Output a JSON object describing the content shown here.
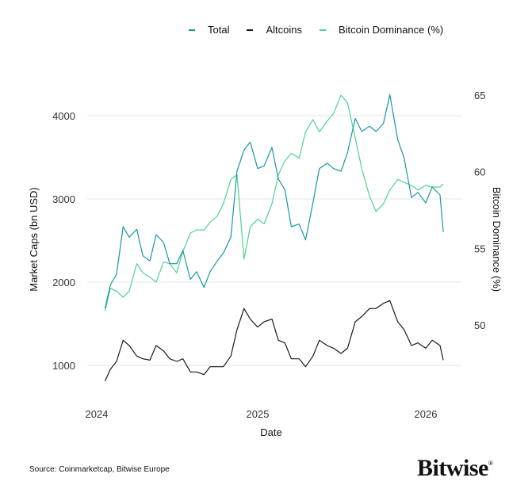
{
  "chart_data": {
    "type": "line",
    "xlabel": "Date",
    "ylabel_left": "Market Caps (bn USD)",
    "ylabel_right": "Bitcoin Dominance (%)",
    "x_ticks": [
      "2024",
      "2025",
      "2026"
    ],
    "y_left_ticks": [
      1000,
      2000,
      3000,
      4000
    ],
    "y_right_ticks": [
      50,
      55,
      60,
      65
    ],
    "grid": true,
    "legend_position": "top",
    "x": [
      "2024-01-20",
      "2024-02-01",
      "2024-02-15",
      "2024-03-01",
      "2024-03-15",
      "2024-04-01",
      "2024-04-15",
      "2024-05-01",
      "2024-05-15",
      "2024-06-01",
      "2024-06-15",
      "2024-07-01",
      "2024-07-15",
      "2024-08-01",
      "2024-08-15",
      "2024-09-01",
      "2024-09-15",
      "2024-10-01",
      "2024-10-15",
      "2024-11-01",
      "2024-11-15",
      "2024-12-01",
      "2024-12-15",
      "2025-01-01",
      "2025-01-15",
      "2025-02-01",
      "2025-02-15",
      "2025-03-01",
      "2025-03-15",
      "2025-04-01",
      "2025-04-15",
      "2025-05-01",
      "2025-05-15",
      "2025-06-01",
      "2025-06-15",
      "2025-07-01",
      "2025-07-15",
      "2025-08-01",
      "2025-08-15",
      "2025-09-01",
      "2025-09-15",
      "2025-10-01",
      "2025-10-15",
      "2025-11-01",
      "2025-11-15",
      "2025-12-01",
      "2025-12-15",
      "2026-01-01",
      "2026-01-15",
      "2026-02-01",
      "2026-02-08"
    ],
    "series": [
      {
        "name": "Total",
        "axis": "left",
        "color": "#1a95a5",
        "values": [
          1683,
          1968,
          2095,
          2667,
          2540,
          2635,
          2317,
          2254,
          2571,
          2476,
          2222,
          2222,
          2381,
          2032,
          2127,
          1937,
          2127,
          2254,
          2349,
          2540,
          3333,
          3587,
          3683,
          3365,
          3397,
          3619,
          3238,
          3111,
          2667,
          2698,
          2508,
          2952,
          3365,
          3429,
          3365,
          3333,
          3556,
          3968,
          3810,
          3873,
          3810,
          3905,
          4254,
          3714,
          3492,
          3016,
          3079,
          2952,
          3143,
          3048,
          2603
        ]
      },
      {
        "name": "Altcoins",
        "axis": "left",
        "color": "#1a1a1a",
        "values": [
          810,
          952,
          1048,
          1302,
          1238,
          1111,
          1079,
          1063,
          1238,
          1175,
          1079,
          1048,
          1079,
          921,
          921,
          889,
          984,
          984,
          984,
          1111,
          1429,
          1683,
          1556,
          1460,
          1524,
          1556,
          1302,
          1270,
          1079,
          1079,
          984,
          1111,
          1302,
          1238,
          1206,
          1143,
          1206,
          1524,
          1587,
          1683,
          1683,
          1746,
          1778,
          1524,
          1429,
          1238,
          1270,
          1206,
          1302,
          1238,
          1063
        ]
      },
      {
        "name": "Bitcoin Dominance (%)",
        "axis": "right",
        "color": "#4fd28e",
        "values": [
          50.9,
          52.4,
          52.2,
          51.8,
          52.2,
          54.0,
          53.4,
          53.1,
          52.8,
          54.1,
          54.0,
          53.4,
          54.8,
          56.0,
          56.2,
          56.2,
          56.7,
          57.1,
          57.9,
          59.5,
          59.8,
          54.3,
          56.4,
          56.9,
          56.6,
          57.9,
          59.8,
          60.7,
          61.2,
          60.9,
          62.6,
          63.4,
          62.6,
          63.3,
          63.8,
          65.0,
          64.5,
          62.2,
          60.2,
          58.4,
          57.4,
          57.9,
          58.8,
          59.5,
          59.3,
          59.1,
          58.8,
          59.1,
          59.0,
          59.0,
          59.2
        ]
      }
    ]
  },
  "source": "Source: Coinmarketcap, Bitwise Europe",
  "logo": "Bitwise"
}
